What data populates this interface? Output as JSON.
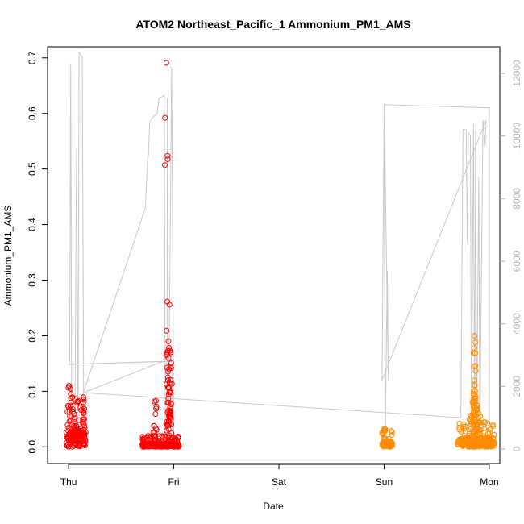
{
  "chart_data": {
    "type": "scatter",
    "title": "ATOM2 Northeast_Pacific_1 Ammonium_PM1_AMS",
    "xlabel": "Date",
    "ylabel": "Ammonium_PM1_AMS",
    "x_ticks": [
      "Thu",
      "Fri",
      "Sat",
      "Sun",
      "Mon"
    ],
    "x_tick_days": [
      0,
      1,
      2,
      3,
      4
    ],
    "xlim_days": [
      -0.2,
      4.1
    ],
    "ylim": [
      -0.03,
      0.72
    ],
    "y_ticks": [
      "0.0",
      "0.1",
      "0.2",
      "0.3",
      "0.4",
      "0.5",
      "0.6",
      "0.7"
    ],
    "y_tick_values": [
      0,
      0.1,
      0.2,
      0.3,
      0.4,
      0.5,
      0.6,
      0.7
    ],
    "y2_ticks": [
      "0",
      "2000",
      "4000",
      "6000",
      "8000",
      "10000",
      "12000"
    ],
    "y2_tick_values": [
      0,
      2000,
      4000,
      6000,
      8000,
      10000,
      12000
    ],
    "y2lim": [
      -465,
      12850
    ],
    "grid": false,
    "legend": "none",
    "colors": {
      "series_a": "#ff0000",
      "series_b": "#ff8c00",
      "altitude_line": "#c8c8c8",
      "axis": "#000000",
      "right_axis": "#b3b3b3"
    },
    "series": [
      {
        "color_key": "series_a",
        "clusters": [
          {
            "x_range": [
              -0.02,
              0.16
            ],
            "y_max": 0.09,
            "spikes": [
              [
                0.005,
                0.11
              ],
              [
                0.02,
                0.095
              ],
              [
                0.06,
                0.045
              ],
              [
                0.1,
                0.04
              ],
              [
                0.15,
                0.05
              ],
              [
                0.142,
                0.085
              ]
            ]
          },
          {
            "x_range": [
              0.7,
              1.05
            ],
            "y_max": 0.02,
            "spikes": [
              [
                0.83,
                0.083
              ],
              [
                0.81,
                0.038
              ],
              [
                0.93,
                0.691
              ],
              [
                0.96,
                0.256
              ],
              [
                0.95,
                0.19
              ],
              [
                0.94,
                0.17
              ],
              [
                0.97,
                0.17
              ],
              [
                0.955,
                0.14
              ],
              [
                0.945,
                0.12
              ],
              [
                0.962,
                0.1
              ],
              [
                0.95,
                0.08
              ],
              [
                0.965,
                0.06
              ]
            ]
          }
        ]
      },
      {
        "color_key": "series_b",
        "clusters": [
          {
            "x_range": [
              2.98,
              3.08
            ],
            "y_max": 0.03,
            "spikes": [
              [
                3.0,
                0.032
              ]
            ]
          },
          {
            "x_range": [
              3.7,
              4.05
            ],
            "y_max": 0.045,
            "spikes": [
              [
                3.82,
                0.056
              ],
              [
                3.86,
                0.2
              ],
              [
                3.855,
                0.145
              ],
              [
                3.86,
                0.12
              ],
              [
                3.85,
                0.1
              ],
              [
                3.87,
                0.09
              ],
              [
                3.84,
                0.08
              ],
              [
                3.88,
                0.075
              ],
              [
                3.865,
                0.07
              ],
              [
                3.9,
                0.06
              ],
              [
                3.85,
                0.062
              ]
            ]
          }
        ]
      }
    ],
    "altitude_m": [
      [
        -0.01,
        2700
      ],
      [
        0.01,
        2700
      ],
      [
        0.02,
        12300
      ],
      [
        0.03,
        300
      ],
      [
        0.06,
        300
      ],
      [
        0.075,
        9600
      ],
      [
        0.09,
        300
      ],
      [
        0.1,
        12700
      ],
      [
        0.13,
        12500
      ],
      [
        0.145,
        300
      ],
      [
        0.14,
        1800
      ],
      [
        0.73,
        7700
      ],
      [
        0.75,
        9200
      ],
      [
        0.76,
        9400
      ],
      [
        0.77,
        10400
      ],
      [
        0.78,
        10500
      ],
      [
        0.8,
        10600
      ],
      [
        0.84,
        10700
      ],
      [
        0.86,
        11200
      ],
      [
        0.91,
        11300
      ],
      [
        0.92,
        600
      ],
      [
        0.935,
        300
      ],
      [
        0.94,
        11200
      ],
      [
        0.95,
        400
      ],
      [
        0.98,
        12200
      ],
      [
        1.0,
        300
      ],
      [
        0.98,
        2800
      ],
      [
        -0.01,
        2700
      ],
      [
        0.9,
        2800
      ],
      [
        0.14,
        1800
      ],
      [
        3.73,
        1000
      ],
      [
        3.75,
        10200
      ],
      [
        3.78,
        10200
      ],
      [
        3.79,
        6600
      ],
      [
        3.8,
        10100
      ],
      [
        3.82,
        10000
      ],
      [
        3.83,
        300
      ],
      [
        3.85,
        10400
      ],
      [
        3.86,
        500
      ],
      [
        3.87,
        10200
      ],
      [
        3.88,
        400
      ],
      [
        3.9,
        8700
      ],
      [
        3.91,
        300
      ],
      [
        3.94,
        10500
      ],
      [
        3.96,
        9700
      ],
      [
        3.97,
        10500
      ],
      [
        2.98,
        2200
      ],
      [
        3.0,
        11000
      ],
      [
        3.01,
        300
      ],
      [
        3.03,
        5700
      ],
      [
        3.04,
        2200
      ],
      [
        3.0,
        11000
      ],
      [
        4.0,
        10900
      ],
      [
        4.0,
        300
      ]
    ]
  }
}
